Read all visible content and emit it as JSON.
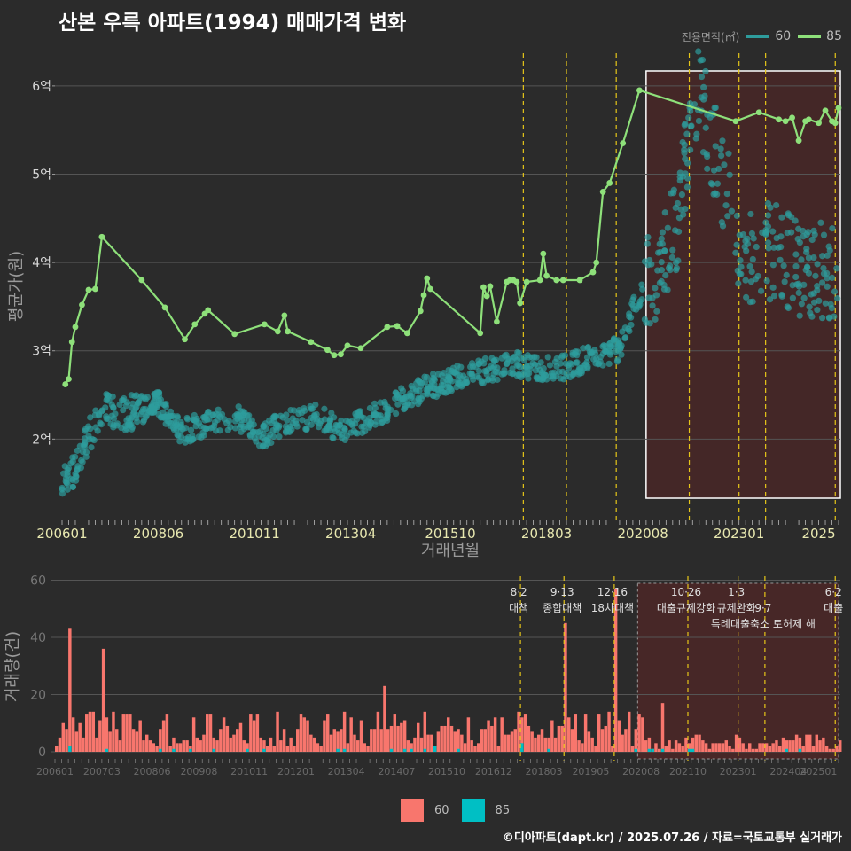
{
  "title": "산본 우륵 아파트(1994) 매매가격 변화",
  "legend": {
    "title": "전용면적(㎡)",
    "items": [
      {
        "label": "60",
        "color": "#2e9c9c"
      },
      {
        "label": "85",
        "color": "#8ee07a"
      }
    ]
  },
  "bottom_legend": {
    "items": [
      {
        "label": "60",
        "color": "#f8766d"
      },
      {
        "label": "85",
        "color": "#00bfc4"
      }
    ]
  },
  "footer": "©디아파트(dapt.kr) / 2025.07.26 / 자료=국토교통부 실거래가",
  "colors": {
    "background": "#2b2b2b",
    "grid": "#555555",
    "policy_line": "#e6c619",
    "highlight_fill": "#5a2525"
  },
  "chart_data": [
    {
      "type": "scatter",
      "xlabel": "거래년월",
      "ylabel": "평균가(원)",
      "x_ticks": [
        "200601",
        "200806",
        "201011",
        "201304",
        "201510",
        "201803",
        "202008",
        "202301",
        "2025"
      ],
      "y_ticks": [
        "2억",
        "3억",
        "4억",
        "5억",
        "6억"
      ],
      "ylim": [
        1.1,
        6.35
      ],
      "grid": true,
      "legend_position": "top-right",
      "highlight_region": {
        "x_start": "2020-09",
        "x_end": "2025-07"
      },
      "policy_lines": [
        "2017-08",
        "2018-09",
        "2019-12",
        "2021-10",
        "2023-01",
        "2023-09",
        "2025-06"
      ],
      "series": [
        {
          "name": "85",
          "type": "line",
          "x": [
            "2006-02",
            "2006-03",
            "2006-04",
            "2006-05",
            "2006-07",
            "2006-09",
            "2006-11",
            "2007-01",
            "2008-01",
            "2008-08",
            "2009-02",
            "2009-05",
            "2009-08",
            "2009-09",
            "2010-05",
            "2011-02",
            "2011-06",
            "2011-08",
            "2011-09",
            "2012-04",
            "2012-09",
            "2012-11",
            "2013-01",
            "2013-03",
            "2013-07",
            "2014-03",
            "2014-06",
            "2014-09",
            "2015-01",
            "2015-02",
            "2015-03",
            "2015-04",
            "2016-07",
            "2016-08",
            "2016-09",
            "2016-10",
            "2016-12",
            "2017-03",
            "2017-04",
            "2017-05",
            "2017-06",
            "2017-07",
            "2017-09",
            "2018-01",
            "2018-02",
            "2018-03",
            "2018-06",
            "2018-08",
            "2019-01",
            "2019-05",
            "2019-06",
            "2019-08",
            "2019-10",
            "2020-02",
            "2020-07",
            "2022-12",
            "2023-07",
            "2024-01",
            "2024-03",
            "2024-05",
            "2024-07",
            "2024-09",
            "2024-10",
            "2025-01",
            "2025-03",
            "2025-05",
            "2025-06",
            "2025-07"
          ],
          "values": [
            2.62,
            2.68,
            3.1,
            3.27,
            3.52,
            3.69,
            3.7,
            4.29,
            3.8,
            3.49,
            3.13,
            3.3,
            3.42,
            3.46,
            3.19,
            3.3,
            3.22,
            3.4,
            3.22,
            3.1,
            3.01,
            2.95,
            2.96,
            3.06,
            3.03,
            3.27,
            3.28,
            3.2,
            3.45,
            3.63,
            3.82,
            3.7,
            3.2,
            3.72,
            3.62,
            3.73,
            3.33,
            3.78,
            3.8,
            3.8,
            3.78,
            3.54,
            3.78,
            3.8,
            4.1,
            3.85,
            3.8,
            3.8,
            3.8,
            3.89,
            4.0,
            4.8,
            4.9,
            5.35,
            5.95,
            5.6,
            5.7,
            5.62,
            5.6,
            5.64,
            5.38,
            5.6,
            5.62,
            5.58,
            5.72,
            5.6,
            5.58,
            5.75
          ]
        },
        {
          "name": "60",
          "type": "scatter",
          "x": [
            "2006-01",
            "2006-06",
            "2007-01",
            "2007-06",
            "2008-01",
            "2008-06",
            "2009-01",
            "2009-06",
            "2010-01",
            "2010-06",
            "2011-01",
            "2011-06",
            "2012-01",
            "2012-06",
            "2013-01",
            "2013-06",
            "2014-01",
            "2014-06",
            "2015-01",
            "2015-06",
            "2016-01",
            "2016-06",
            "2017-01",
            "2017-06",
            "2018-01",
            "2018-06",
            "2019-01",
            "2019-06",
            "2020-01",
            "2020-06",
            "2021-01",
            "2021-06",
            "2021-10",
            "2022-01",
            "2022-06",
            "2022-10",
            "2023-01",
            "2023-06",
            "2024-01",
            "2024-06",
            "2025-01",
            "2025-07"
          ],
          "values": [
            1.45,
            1.75,
            2.38,
            2.28,
            2.32,
            2.42,
            2.08,
            2.15,
            2.22,
            2.25,
            2.02,
            2.15,
            2.22,
            2.28,
            2.08,
            2.18,
            2.3,
            2.42,
            2.55,
            2.62,
            2.7,
            2.75,
            2.82,
            2.85,
            2.8,
            2.78,
            2.88,
            2.95,
            3.02,
            3.55,
            3.95,
            4.4,
            5.4,
            5.9,
            5.2,
            4.7,
            3.95,
            4.1,
            4.15,
            3.95,
            3.92,
            3.9
          ]
        }
      ]
    },
    {
      "type": "bar",
      "xlabel": "",
      "ylabel": "거래량(건)",
      "y_ticks": [
        0,
        20,
        40,
        60
      ],
      "ylim": [
        0,
        62
      ],
      "x_ticks": [
        "200601",
        "200703",
        "200806",
        "200908",
        "201011",
        "201201",
        "201304",
        "201407",
        "201510",
        "201612",
        "201803",
        "201905",
        "202008",
        "202110",
        "202301",
        "202404",
        "202501"
      ],
      "policy_annotations": [
        {
          "x": "2017-08",
          "date": "8·2",
          "label": "대책"
        },
        {
          "x": "2018-09",
          "date": "9·13",
          "label": "종합대책"
        },
        {
          "x": "2019-12",
          "date": "12·16",
          "label": "18차대책"
        },
        {
          "x": "2021-10",
          "date": "10·26",
          "label": "대출규제강화"
        },
        {
          "x": "2023-01",
          "date": "1·3",
          "label": "규제완화"
        },
        {
          "x": "2023-09",
          "date": "9·7",
          "label": "특례대출축소 토허제 해"
        },
        {
          "x": "2025-06",
          "date": "6·2",
          "label": "대출"
        }
      ],
      "series": [
        {
          "name": "60",
          "peaks": [
            {
              "x": "2006-05",
              "value": 43
            },
            {
              "x": "2007-03",
              "value": 36
            },
            {
              "x": "2018-09",
              "value": 45
            },
            {
              "x": "2019-12",
              "value": 57
            },
            {
              "x": "2014-03",
              "value": 23
            },
            {
              "x": "2021-02",
              "value": 17
            }
          ]
        },
        {
          "name": "85",
          "peaks": [
            {
              "x": "2006-05",
              "value": 2
            },
            {
              "x": "2015-06",
              "value": 2
            },
            {
              "x": "2017-08",
              "value": 3
            }
          ]
        }
      ]
    }
  ]
}
